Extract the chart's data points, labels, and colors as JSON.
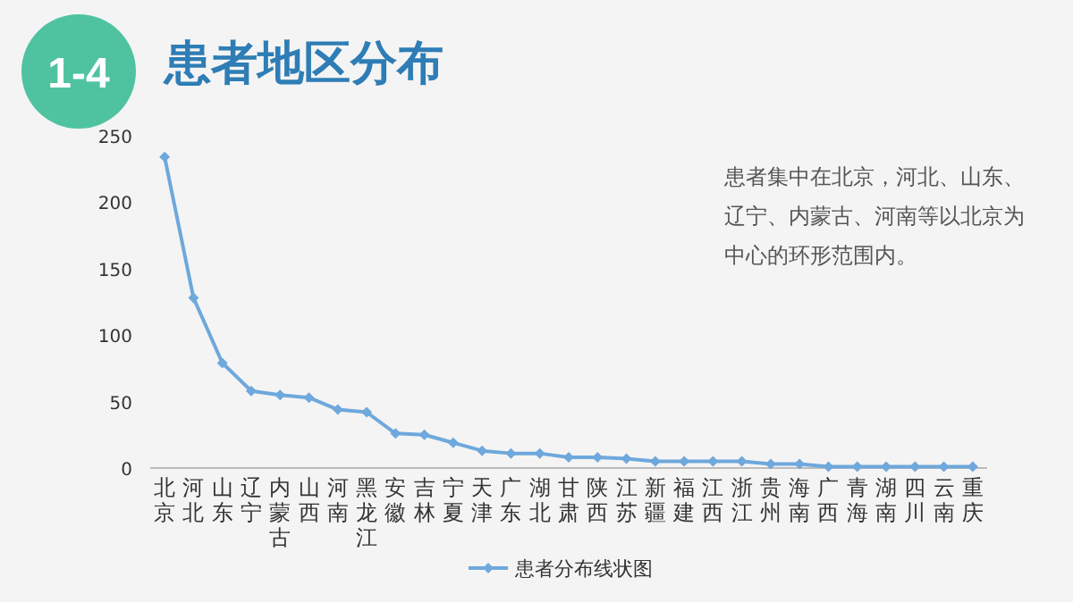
{
  "chart_data": {
    "type": "line",
    "title": "患者地区分布",
    "categories": [
      "北京",
      "河北",
      "山东",
      "辽宁",
      "内蒙古",
      "山西",
      "河南",
      "黑龙江",
      "安徽",
      "吉林",
      "宁夏",
      "天津",
      "广东",
      "湖北",
      "甘肃",
      "陕西",
      "江苏",
      "新疆",
      "福建",
      "江西",
      "浙江",
      "贵州",
      "海南",
      "广西",
      "青海",
      "湖南",
      "四川",
      "云南",
      "重庆"
    ],
    "series": [
      {
        "name": "患者分布线状图",
        "color": "#6ea8dc",
        "values": [
          234,
          128,
          79,
          58,
          55,
          53,
          44,
          42,
          26,
          25,
          19,
          13,
          11,
          11,
          8,
          8,
          7,
          5,
          5,
          5,
          5,
          3,
          3,
          1,
          1,
          1,
          1,
          1,
          1
        ]
      }
    ],
    "ylim": [
      0,
      250
    ],
    "yticks": [
      0,
      50,
      100,
      150,
      200,
      250
    ],
    "annotations": [
      "1-4",
      "患者集中在北京，河北、山东、辽宁、内蒙古、河南等以北京为中心的环形范围内。"
    ],
    "legend": "bottom",
    "marker": "diamond"
  }
}
